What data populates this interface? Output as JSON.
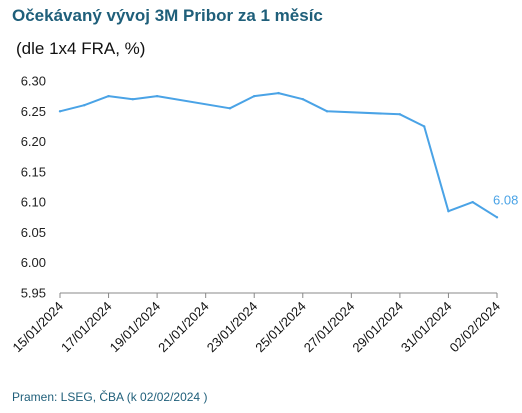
{
  "title": "Očekávaný vývoj 3M Pribor za 1 měsíc",
  "subtitle": "(dle 1x4 FRA, %)",
  "source": "Pramen: LSEG, ČBA (k 02/02/2024 )",
  "colors": {
    "line": "#4aa3e6",
    "title": "#1f5f7a",
    "axis": "#888888"
  },
  "chart_data": {
    "type": "line",
    "title": "Očekávaný vývoj 3M Pribor za 1 měsíc",
    "subtitle": "(dle 1x4 FRA, %)",
    "ylim": [
      5.95,
      6.3
    ],
    "yticks": [
      "6.30",
      "6.25",
      "6.20",
      "6.15",
      "6.10",
      "6.05",
      "6.00",
      "5.95"
    ],
    "xticks": [
      "15/01/2024",
      "17/01/2024",
      "19/01/2024",
      "21/01/2024",
      "23/01/2024",
      "25/01/2024",
      "27/01/2024",
      "29/01/2024",
      "31/01/2024",
      "02/02/2024"
    ],
    "grid": false,
    "series": [
      {
        "x": [
          "15/01/2024",
          "16/01/2024",
          "17/01/2024",
          "18/01/2024",
          "19/01/2024",
          "22/01/2024",
          "23/01/2024",
          "24/01/2024",
          "25/01/2024",
          "26/01/2024",
          "29/01/2024",
          "30/01/2024",
          "31/01/2024",
          "01/02/2024",
          "02/02/2024"
        ],
        "values": [
          6.25,
          6.26,
          6.275,
          6.27,
          6.275,
          6.255,
          6.275,
          6.28,
          6.27,
          6.25,
          6.245,
          6.225,
          6.085,
          6.1,
          6.075
        ]
      }
    ],
    "data_labels": [
      {
        "x": "02/02/2024",
        "text": "6.08"
      }
    ]
  }
}
